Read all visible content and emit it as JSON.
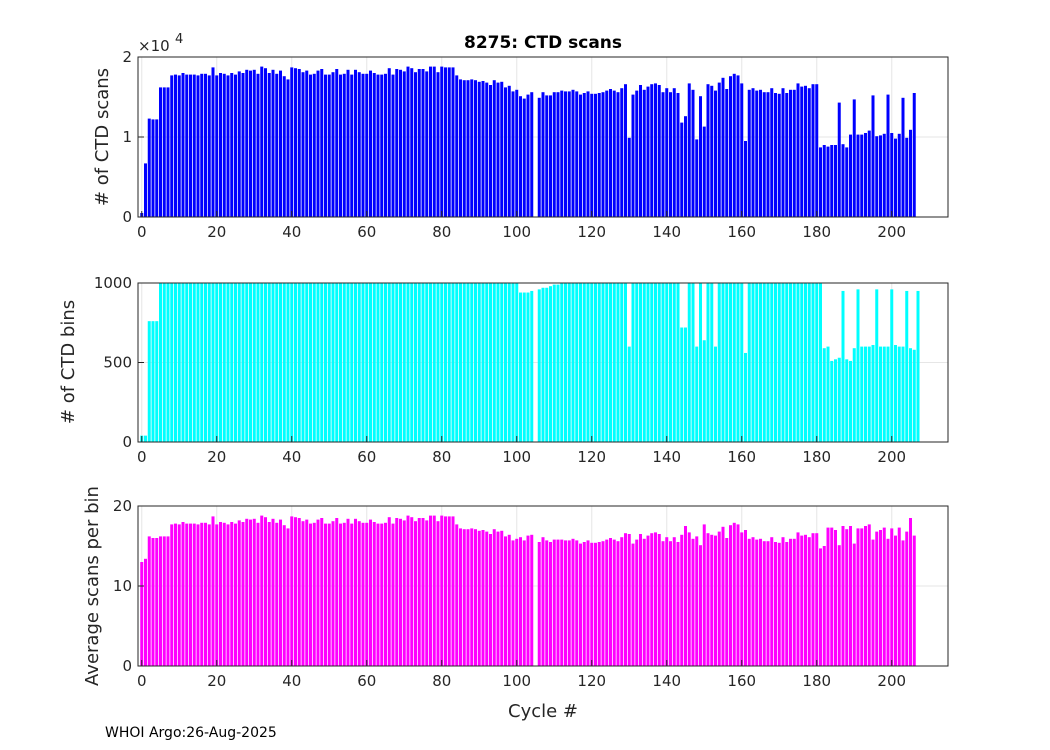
{
  "footer": "WHOI Argo:26-Aug-2025",
  "chart_data": [
    {
      "type": "bar",
      "title": "8275: CTD scans",
      "xlabel": "",
      "ylabel": "# of CTD scans",
      "exponent_label": "×10",
      "exponent_power": "4",
      "color": "#0000ff",
      "xlim": [
        -1,
        215
      ],
      "ylim": [
        0,
        20000
      ],
      "xticks": [
        0,
        20,
        40,
        60,
        80,
        100,
        120,
        140,
        160,
        180,
        200
      ],
      "yticks": [
        0,
        10000,
        20000
      ],
      "ytick_labels": [
        "0",
        "1",
        "2"
      ],
      "grid": true,
      "values": [
        500,
        6700,
        12300,
        12200,
        12200,
        16200,
        16200,
        16200,
        17700,
        17800,
        17700,
        18000,
        17800,
        17800,
        17800,
        17700,
        17900,
        17900,
        17700,
        18700,
        17700,
        18000,
        17900,
        17700,
        18000,
        17800,
        18200,
        18000,
        18400,
        18300,
        18400,
        17900,
        18800,
        18600,
        18000,
        18400,
        17900,
        18300,
        17600,
        17200,
        18700,
        18600,
        18500,
        18100,
        18300,
        17800,
        17900,
        18300,
        18500,
        17800,
        17800,
        18100,
        18500,
        17800,
        17900,
        18400,
        17800,
        18400,
        18100,
        17900,
        17900,
        18300,
        18000,
        17800,
        17800,
        17900,
        18600,
        17800,
        18500,
        18400,
        18200,
        18800,
        18600,
        18100,
        18500,
        18500,
        18200,
        18800,
        18800,
        18100,
        18800,
        18700,
        18700,
        18700,
        17700,
        17200,
        17100,
        17100,
        17200,
        17100,
        16900,
        17000,
        16800,
        16500,
        17100,
        16800,
        16900,
        16200,
        16400,
        15700,
        15900,
        15100,
        14800,
        15300,
        15600,
        0,
        14900,
        15600,
        15200,
        15200,
        15600,
        15600,
        15800,
        15700,
        15700,
        15900,
        15700,
        15300,
        15500,
        15700,
        15400,
        15400,
        15500,
        15600,
        15800,
        16000,
        15800,
        15600,
        16100,
        16600,
        9900,
        15300,
        15800,
        16500,
        15900,
        16300,
        16600,
        16700,
        16500,
        15600,
        16100,
        15600,
        16100,
        15500,
        11800,
        12600,
        16700,
        15900,
        9700,
        15100,
        11300,
        16600,
        16400,
        15800,
        16800,
        17400,
        16000,
        17600,
        17900,
        17700,
        16700,
        9500,
        15900,
        16100,
        15800,
        15900,
        15600,
        15600,
        16100,
        15500,
        15400,
        16100,
        15500,
        15900,
        15900,
        16700,
        16300,
        16400,
        16100,
        16600,
        16600,
        8700,
        9000,
        8800,
        9000,
        9000,
        14300,
        9100,
        8700,
        10300,
        14700,
        10300,
        10300,
        10500,
        10800,
        15200,
        10100,
        10200,
        10400,
        15300,
        10500,
        9800,
        10400,
        14900,
        9900,
        10900,
        15500
      ]
    },
    {
      "type": "bar",
      "title": "",
      "xlabel": "",
      "ylabel": "# of CTD bins",
      "color": "#00ffff",
      "xlim": [
        -1,
        215
      ],
      "ylim": [
        0,
        1000
      ],
      "xticks": [
        0,
        20,
        40,
        60,
        80,
        100,
        120,
        140,
        160,
        180,
        200
      ],
      "yticks": [
        0,
        500,
        1000
      ],
      "ytick_labels": [
        "0",
        "500",
        "1000"
      ],
      "grid": true,
      "values": [
        40,
        40,
        760,
        760,
        760,
        1000,
        1000,
        1000,
        1000,
        1000,
        1000,
        1000,
        1000,
        1000,
        1000,
        1000,
        1000,
        1000,
        1000,
        1000,
        1000,
        1000,
        1000,
        1000,
        1000,
        1000,
        1000,
        1000,
        1000,
        1000,
        1000,
        1000,
        1000,
        1000,
        1000,
        1000,
        1000,
        1000,
        1000,
        1000,
        1000,
        1000,
        1000,
        1000,
        1000,
        1000,
        1000,
        1000,
        1000,
        1000,
        1000,
        1000,
        1000,
        1000,
        1000,
        1000,
        1000,
        1000,
        1000,
        1000,
        1000,
        1000,
        1000,
        1000,
        1000,
        1000,
        1000,
        1000,
        1000,
        1000,
        1000,
        1000,
        1000,
        1000,
        1000,
        1000,
        1000,
        1000,
        1000,
        1000,
        1000,
        1000,
        1000,
        1000,
        1000,
        1000,
        1000,
        1000,
        1000,
        1000,
        1000,
        1000,
        1000,
        1000,
        1000,
        1000,
        1000,
        1000,
        1000,
        1000,
        1000,
        940,
        940,
        940,
        950,
        0,
        960,
        970,
        970,
        980,
        990,
        990,
        1000,
        1000,
        1000,
        1000,
        1000,
        1000,
        1000,
        1000,
        1000,
        1000,
        1000,
        1000,
        1000,
        1000,
        1000,
        1000,
        1000,
        1000,
        600,
        1000,
        1000,
        1000,
        1000,
        1000,
        1000,
        1000,
        1000,
        1000,
        1000,
        1000,
        1000,
        1000,
        720,
        720,
        1000,
        1000,
        600,
        1000,
        640,
        1000,
        1000,
        600,
        1000,
        1000,
        1000,
        1000,
        1000,
        1000,
        1000,
        560,
        1000,
        1000,
        1000,
        1000,
        1000,
        1000,
        1000,
        1000,
        1000,
        1000,
        1000,
        1000,
        1000,
        1000,
        1000,
        1000,
        1000,
        1000,
        1000,
        1000,
        590,
        600,
        510,
        520,
        530,
        950,
        520,
        510,
        590,
        960,
        600,
        600,
        600,
        610,
        960,
        600,
        600,
        600,
        960,
        610,
        600,
        600,
        950,
        590,
        580,
        950
      ]
    },
    {
      "type": "bar",
      "title": "",
      "xlabel": "Cycle #",
      "ylabel": "Average scans per bin",
      "color": "#ff00ff",
      "xlim": [
        -1,
        215
      ],
      "ylim": [
        0,
        20
      ],
      "xticks": [
        0,
        20,
        40,
        60,
        80,
        100,
        120,
        140,
        160,
        180,
        200
      ],
      "yticks": [
        0,
        10,
        20
      ],
      "ytick_labels": [
        "0",
        "10",
        "20"
      ],
      "grid": true,
      "values": [
        13.0,
        13.4,
        16.2,
        16.0,
        16.0,
        16.2,
        16.2,
        16.2,
        17.7,
        17.8,
        17.7,
        18.0,
        17.8,
        17.8,
        17.8,
        17.7,
        17.9,
        17.9,
        17.7,
        18.7,
        17.7,
        18.0,
        17.9,
        17.7,
        18.0,
        17.8,
        18.2,
        18.0,
        18.4,
        18.3,
        18.4,
        17.9,
        18.8,
        18.6,
        18.0,
        18.4,
        17.9,
        18.3,
        17.6,
        17.2,
        18.7,
        18.6,
        18.5,
        18.1,
        18.3,
        17.8,
        17.9,
        18.3,
        18.5,
        17.8,
        17.8,
        18.1,
        18.5,
        17.8,
        17.9,
        18.4,
        17.8,
        18.4,
        18.1,
        17.9,
        17.9,
        18.3,
        18.0,
        17.8,
        17.8,
        17.9,
        18.6,
        17.8,
        18.5,
        18.4,
        18.2,
        18.8,
        18.6,
        18.1,
        18.5,
        18.5,
        18.2,
        18.8,
        18.8,
        18.1,
        18.8,
        18.7,
        18.7,
        18.7,
        17.7,
        17.2,
        17.1,
        17.1,
        17.2,
        17.1,
        16.9,
        17.0,
        16.8,
        16.5,
        17.1,
        16.8,
        16.9,
        16.2,
        16.4,
        15.7,
        15.9,
        16.1,
        15.7,
        16.3,
        16.4,
        0,
        15.5,
        16.1,
        15.7,
        15.5,
        15.8,
        15.8,
        15.8,
        15.7,
        15.7,
        15.9,
        15.7,
        15.3,
        15.5,
        15.7,
        15.4,
        15.4,
        15.5,
        15.6,
        15.8,
        16.0,
        15.8,
        15.6,
        16.1,
        16.6,
        16.5,
        15.3,
        15.8,
        16.5,
        15.9,
        16.3,
        16.6,
        16.7,
        16.5,
        15.6,
        16.1,
        15.6,
        16.1,
        15.5,
        16.4,
        17.5,
        16.7,
        15.9,
        16.2,
        15.1,
        17.7,
        16.6,
        16.4,
        16.3,
        16.8,
        17.4,
        16.0,
        17.6,
        17.9,
        17.7,
        16.7,
        17.0,
        15.9,
        16.1,
        15.8,
        15.9,
        15.6,
        15.6,
        16.1,
        15.5,
        15.4,
        16.1,
        15.5,
        15.9,
        15.9,
        16.7,
        16.3,
        16.4,
        16.1,
        16.6,
        16.6,
        14.7,
        15.0,
        17.3,
        17.3,
        17.0,
        15.1,
        17.5,
        17.1,
        17.5,
        15.3,
        17.2,
        17.2,
        17.5,
        17.7,
        15.8,
        16.8,
        17.0,
        17.3,
        15.9,
        17.2,
        16.3,
        17.3,
        15.7,
        16.8,
        18.5,
        16.3
      ]
    }
  ]
}
